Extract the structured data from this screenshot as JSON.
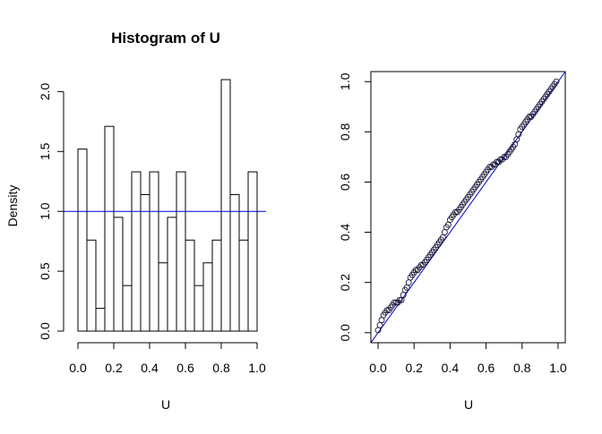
{
  "chart_data": [
    {
      "type": "bar",
      "title": "Histogram of U",
      "xlabel": "U",
      "ylabel": "Density",
      "bin_edges": [
        0,
        0.05,
        0.1,
        0.15,
        0.2,
        0.25,
        0.3,
        0.35,
        0.4,
        0.45,
        0.5,
        0.55,
        0.6,
        0.65,
        0.7,
        0.75,
        0.8,
        0.85,
        0.9,
        0.95,
        1.0
      ],
      "values": [
        1.52,
        0.76,
        0.19,
        1.71,
        0.95,
        0.38,
        1.33,
        1.14,
        1.33,
        0.57,
        0.95,
        1.33,
        0.76,
        0.38,
        0.57,
        0.76,
        2.1,
        1.14,
        0.76,
        1.33
      ],
      "xlim": [
        -0.08,
        1.06
      ],
      "ylim": [
        0,
        2.1
      ],
      "xticks": [
        0.0,
        0.2,
        0.4,
        0.6,
        0.8,
        1.0
      ],
      "xtick_labels": [
        "0.0",
        "0.2",
        "0.4",
        "0.6",
        "0.8",
        "1.0"
      ],
      "yticks": [
        0.0,
        0.5,
        1.0,
        1.5,
        2.0
      ],
      "ytick_labels": [
        "0.0",
        "0.5",
        "1.0",
        "1.5",
        "2.0"
      ],
      "reference_line": {
        "y": 1.0,
        "color": "#0000cc"
      },
      "grid": false
    },
    {
      "type": "scatter",
      "title": "",
      "xlabel": "U",
      "ylabel": "",
      "x": [
        0.0,
        0.01,
        0.02,
        0.03,
        0.04,
        0.05,
        0.06,
        0.07,
        0.08,
        0.09,
        0.1,
        0.11,
        0.12,
        0.13,
        0.14,
        0.15,
        0.16,
        0.17,
        0.18,
        0.19,
        0.2,
        0.21,
        0.22,
        0.23,
        0.24,
        0.25,
        0.26,
        0.27,
        0.28,
        0.29,
        0.3,
        0.31,
        0.32,
        0.33,
        0.34,
        0.35,
        0.36,
        0.37,
        0.38,
        0.39,
        0.4,
        0.41,
        0.42,
        0.43,
        0.44,
        0.45,
        0.46,
        0.47,
        0.48,
        0.49,
        0.5,
        0.51,
        0.52,
        0.53,
        0.54,
        0.55,
        0.56,
        0.57,
        0.58,
        0.59,
        0.6,
        0.61,
        0.62,
        0.63,
        0.64,
        0.65,
        0.66,
        0.67,
        0.68,
        0.69,
        0.7,
        0.71,
        0.72,
        0.73,
        0.74,
        0.75,
        0.76,
        0.77,
        0.78,
        0.79,
        0.8,
        0.81,
        0.82,
        0.83,
        0.84,
        0.85,
        0.86,
        0.87,
        0.88,
        0.89,
        0.9,
        0.91,
        0.92,
        0.93,
        0.94,
        0.95,
        0.96,
        0.97,
        0.98,
        0.99
      ],
      "y": [
        0.01,
        0.03,
        0.05,
        0.07,
        0.08,
        0.09,
        0.09,
        0.1,
        0.11,
        0.12,
        0.12,
        0.12,
        0.13,
        0.13,
        0.15,
        0.17,
        0.18,
        0.2,
        0.22,
        0.23,
        0.24,
        0.25,
        0.25,
        0.26,
        0.27,
        0.27,
        0.28,
        0.29,
        0.3,
        0.31,
        0.32,
        0.33,
        0.34,
        0.35,
        0.36,
        0.37,
        0.38,
        0.4,
        0.42,
        0.43,
        0.45,
        0.46,
        0.47,
        0.48,
        0.48,
        0.49,
        0.5,
        0.51,
        0.52,
        0.53,
        0.54,
        0.55,
        0.56,
        0.57,
        0.58,
        0.59,
        0.6,
        0.61,
        0.62,
        0.63,
        0.64,
        0.65,
        0.66,
        0.66,
        0.67,
        0.67,
        0.68,
        0.68,
        0.69,
        0.69,
        0.7,
        0.7,
        0.71,
        0.72,
        0.73,
        0.74,
        0.75,
        0.77,
        0.79,
        0.81,
        0.82,
        0.83,
        0.84,
        0.85,
        0.86,
        0.86,
        0.87,
        0.88,
        0.89,
        0.9,
        0.91,
        0.92,
        0.93,
        0.94,
        0.95,
        0.96,
        0.97,
        0.98,
        0.99,
        1.0
      ],
      "xlim": [
        -0.04,
        1.04
      ],
      "ylim": [
        -0.04,
        1.04
      ],
      "xticks": [
        0.0,
        0.2,
        0.4,
        0.6,
        0.8,
        1.0
      ],
      "xtick_labels": [
        "0.0",
        "0.2",
        "0.4",
        "0.6",
        "0.8",
        "1.0"
      ],
      "yticks": [
        0.0,
        0.2,
        0.4,
        0.6,
        0.8,
        1.0
      ],
      "ytick_labels": [
        "0.0",
        "0.2",
        "0.4",
        "0.6",
        "0.8",
        "1.0"
      ],
      "reference_line": {
        "from": [
          -0.04,
          -0.04
        ],
        "to": [
          1.04,
          1.04
        ],
        "color": "#0000cc"
      },
      "point_color": "#1a1a3a",
      "grid": false
    }
  ]
}
